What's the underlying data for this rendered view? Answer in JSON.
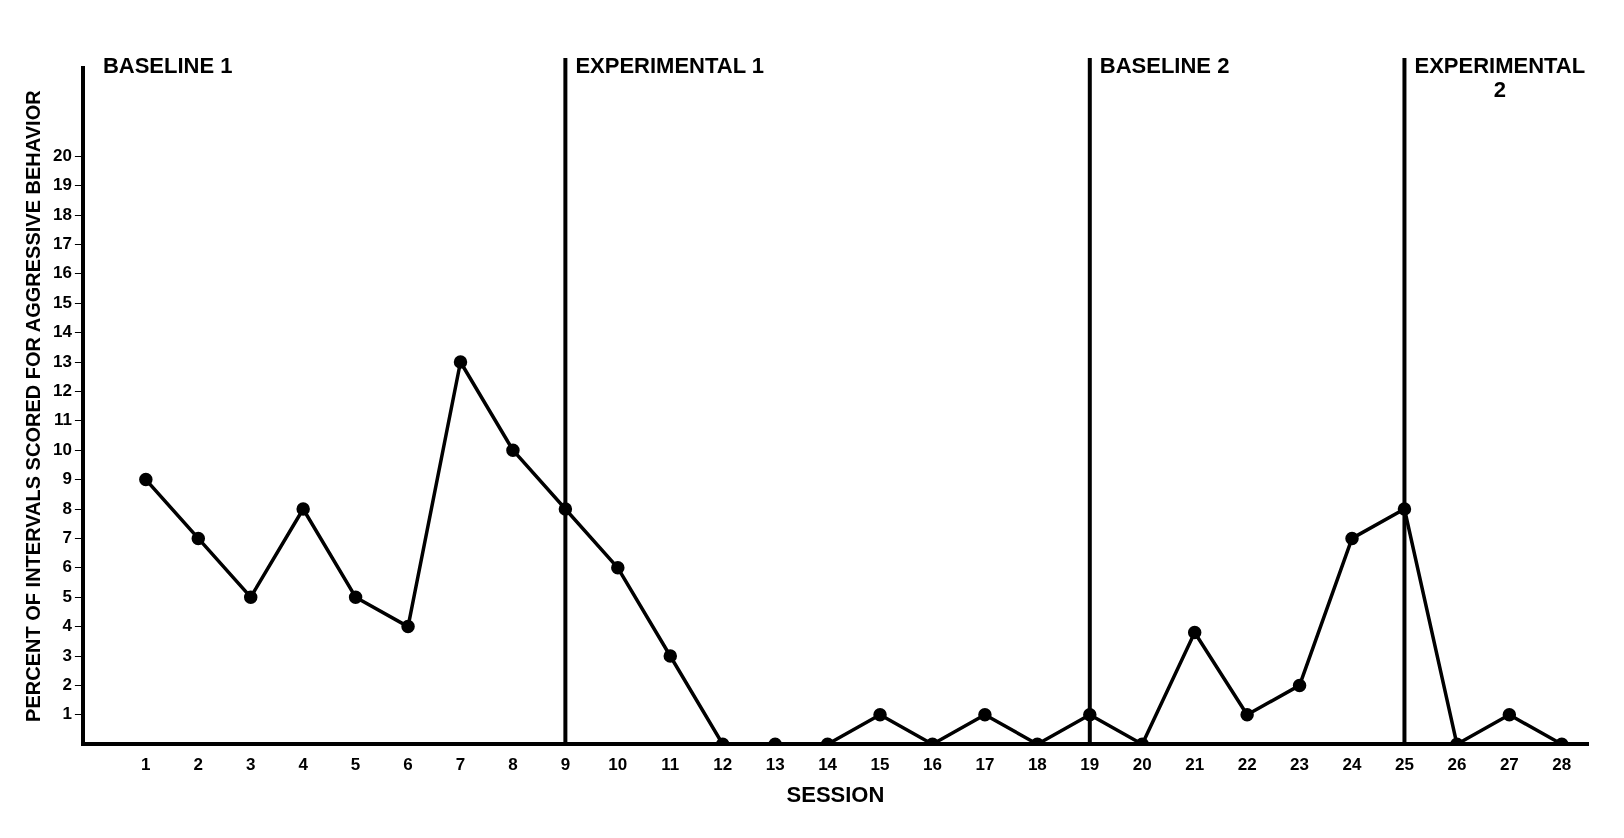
{
  "chart_data": {
    "type": "line",
    "xlabel": "SESSION",
    "ylabel": "PERCENT OF INTERVALS SCORED FOR AGGRESSIVE BEHAVIOR",
    "x": [
      1,
      2,
      3,
      4,
      5,
      6,
      7,
      8,
      9,
      10,
      11,
      12,
      13,
      14,
      15,
      16,
      17,
      18,
      19,
      20,
      21,
      22,
      23,
      24,
      25,
      26,
      27,
      28
    ],
    "values": [
      9,
      7,
      5,
      8,
      5,
      4,
      13,
      10,
      8,
      6,
      3,
      0,
      0,
      0,
      1,
      0,
      1,
      0,
      1,
      0,
      3.8,
      1,
      2,
      7,
      8,
      0,
      1,
      0
    ],
    "color": "#000000",
    "marker": "circle",
    "line_style": "solid",
    "grid": false,
    "legend": false,
    "xlim": [
      -0.2,
      28.5
    ],
    "xticks": [
      1,
      2,
      3,
      4,
      5,
      6,
      7,
      8,
      9,
      10,
      11,
      12,
      13,
      14,
      15,
      16,
      17,
      18,
      19,
      20,
      21,
      22,
      23,
      24,
      25,
      26,
      27,
      28
    ],
    "ylim": [
      0,
      23
    ],
    "yticks": [
      1,
      2,
      3,
      4,
      5,
      6,
      7,
      8,
      9,
      10,
      11,
      12,
      13,
      14,
      15,
      16,
      17,
      18,
      19,
      20
    ],
    "ref_lines": [
      {
        "axis": "x",
        "value": 9,
        "label": "EXPERIMENTAL 1"
      },
      {
        "axis": "x",
        "value": 19,
        "label": "BASELINE 2"
      },
      {
        "axis": "x",
        "value": 25,
        "label": "EXPERIMENTAL 2"
      }
    ],
    "annotations": [
      "BASELINE 1"
    ]
  }
}
